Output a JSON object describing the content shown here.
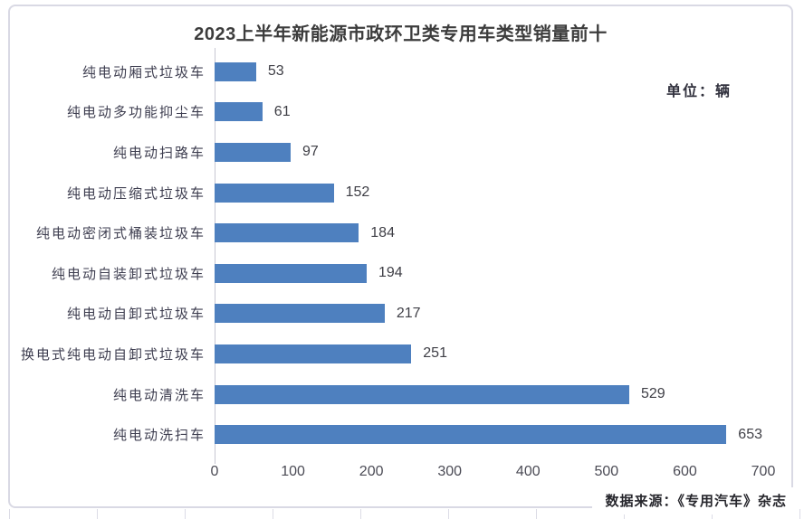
{
  "title": "2023上半年新能源市政环卫类专用车类型销量前十",
  "unit_label": "单位：辆",
  "source_label": "数据来源：《专用汽车》杂志",
  "colors": {
    "bar": "#4e80bf",
    "title_text": "#3c3c3c",
    "frame_border": "#d9d9e4"
  },
  "chart_data": {
    "type": "bar",
    "orientation": "horizontal",
    "title": "2023上半年新能源市政环卫类专用车类型销量前十",
    "unit": "辆",
    "categories": [
      "纯电动厢式垃圾车",
      "纯电动多功能抑尘车",
      "纯电动扫路车",
      "纯电动压缩式垃圾车",
      "纯电动密闭式桶装垃圾车",
      "纯电动自装卸式垃圾车",
      "纯电动自卸式垃圾车",
      "换电式纯电动自卸式垃圾车",
      "纯电动清洗车",
      "纯电动洗扫车"
    ],
    "values": [
      53,
      61,
      97,
      152,
      184,
      194,
      217,
      251,
      529,
      653
    ],
    "xlim": [
      0,
      700
    ],
    "xticks": [
      0,
      100,
      200,
      300,
      400,
      500,
      600,
      700
    ],
    "grid": false,
    "legend": null,
    "data_labels": true,
    "source": "数据来源：《专用汽车》杂志"
  }
}
